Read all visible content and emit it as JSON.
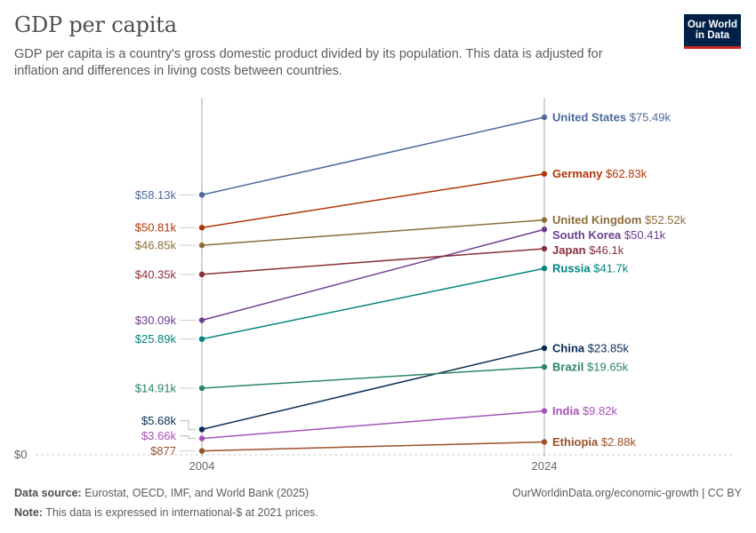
{
  "header": {
    "title": "GDP per capita",
    "subtitle": "GDP per capita is a country's gross domestic product divided by its population. This data is adjusted for inflation and differences in living costs between countries.",
    "logo_line1": "Our World",
    "logo_line2": "in Data"
  },
  "footer": {
    "source_label": "Data source:",
    "source_text": "Eurostat, OECD, IMF, and World Bank (2025)",
    "note_label": "Note:",
    "note_text": "This data is expressed in international-$ at 2021 prices.",
    "credit": "OurWorldinData.org/economic-growth | CC BY"
  },
  "chart_data": {
    "type": "line",
    "title": "GDP per capita",
    "x": [
      "2004",
      "2024"
    ],
    "ylim": [
      0,
      77000
    ],
    "y_ticks": [
      {
        "value": 0,
        "label": "$0"
      }
    ],
    "grid": "horizontal-zero-line",
    "series": [
      {
        "name": "United States",
        "values": [
          58130,
          75490
        ],
        "start_label": "$58.13k",
        "end_label": "$75.49k",
        "color": "#4c6a9c"
      },
      {
        "name": "Germany",
        "values": [
          50810,
          62830
        ],
        "start_label": "$50.81k",
        "end_label": "$62.83k",
        "color": "#b13507"
      },
      {
        "name": "United Kingdom",
        "values": [
          46850,
          52520
        ],
        "start_label": "$46.85k",
        "end_label": "$52.52k",
        "color": "#8c6c3a"
      },
      {
        "name": "South Korea",
        "values": [
          30090,
          50410
        ],
        "start_label": "$30.09k",
        "end_label": "$50.41k",
        "color": "#6d3e91"
      },
      {
        "name": "Japan",
        "values": [
          40350,
          46100
        ],
        "start_label": "$40.35k",
        "end_label": "$46.1k",
        "color": "#883039"
      },
      {
        "name": "Russia",
        "values": [
          25890,
          41700
        ],
        "start_label": "$25.89k",
        "end_label": "$41.7k",
        "color": "#00847e"
      },
      {
        "name": "China",
        "values": [
          5680,
          23850
        ],
        "start_label": "$5.68k",
        "end_label": "$23.85k",
        "color": "#0a2c54"
      },
      {
        "name": "Brazil",
        "values": [
          14910,
          19650
        ],
        "start_label": "$14.91k",
        "end_label": "$19.65k",
        "color": "#2c8465"
      },
      {
        "name": "India",
        "values": [
          3660,
          9820
        ],
        "start_label": "$3.66k",
        "end_label": "$9.82k",
        "color": "#a652ba"
      },
      {
        "name": "Ethiopia",
        "values": [
          877,
          2880
        ],
        "start_label": "$877",
        "end_label": "$2.88k",
        "color": "#9a5129"
      }
    ]
  }
}
